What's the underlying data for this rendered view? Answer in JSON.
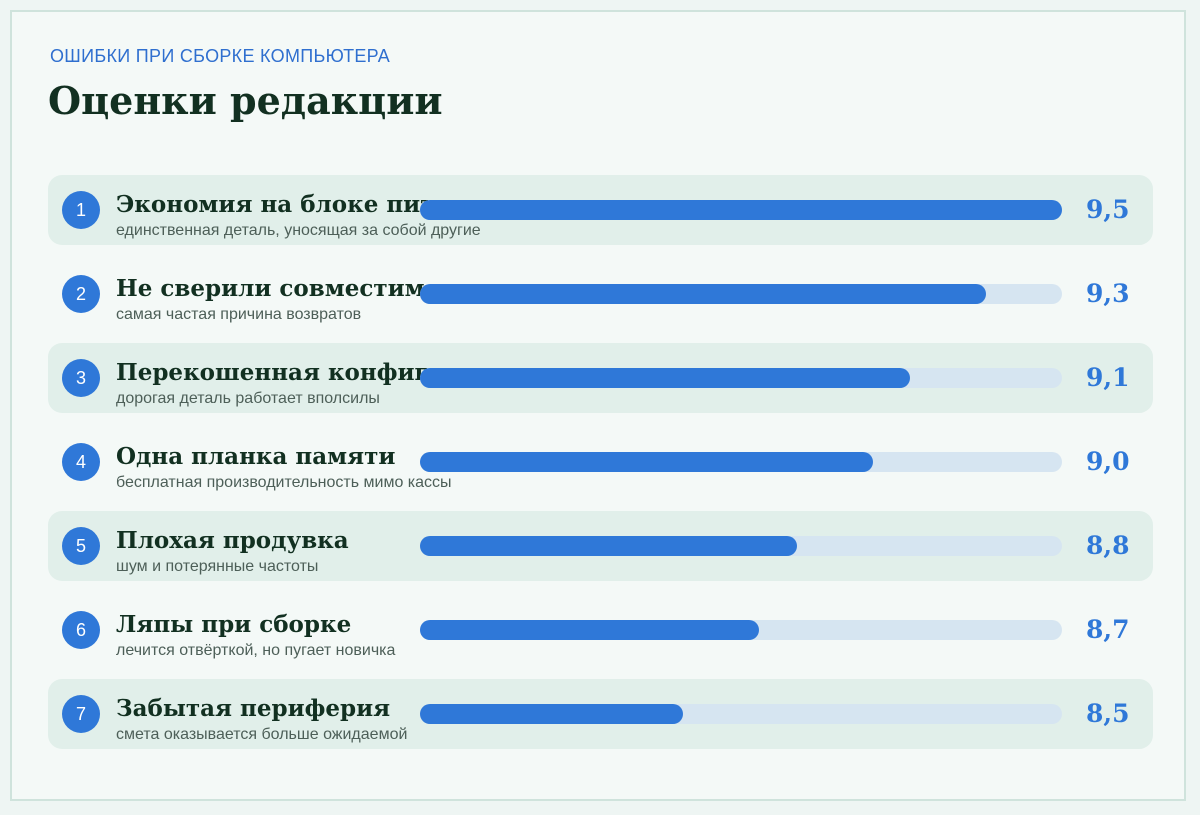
{
  "header": {
    "kicker": "ОШИБКИ ПРИ СБОРКЕ КОМПЬЮТЕРА",
    "title": "Оценки редакции"
  },
  "colors": {
    "accent": "#2f78d8",
    "track": "#d6e5f1",
    "row_shade": "#e1efea",
    "text_dark": "#123021"
  },
  "chart_data": {
    "type": "bar",
    "orientation": "horizontal",
    "title": "Оценки редакции",
    "xlim": [
      8,
      9.5
    ],
    "categories": [
      "Экономия на блоке питания",
      "Не сверили совместимость",
      "Перекошенная конфигурация",
      "Одна планка памяти",
      "Плохая продувка",
      "Ляпы при сборке",
      "Забытая периферия"
    ],
    "values": [
      9.5,
      9.3,
      9.1,
      9.0,
      8.8,
      8.7,
      8.5
    ],
    "items": [
      {
        "rank": "1",
        "label": "Экономия на блоке питания",
        "desc": "единственная деталь, уносящая за собой другие",
        "value": 9.5,
        "score": "9,5"
      },
      {
        "rank": "2",
        "label": "Не сверили совместимость",
        "desc": "самая частая причина возвратов",
        "value": 9.3,
        "score": "9,3"
      },
      {
        "rank": "3",
        "label": "Перекошенная конфигурация",
        "desc": "дорогая деталь работает вполсилы",
        "value": 9.1,
        "score": "9,1"
      },
      {
        "rank": "4",
        "label": "Одна планка памяти",
        "desc": "бесплатная производительность мимо кассы",
        "value": 9.0,
        "score": "9,0"
      },
      {
        "rank": "5",
        "label": "Плохая продувка",
        "desc": "шум и потерянные частоты",
        "value": 8.8,
        "score": "8,8"
      },
      {
        "rank": "6",
        "label": "Ляпы при сборке",
        "desc": "лечится отвёрткой, но пугает новичка",
        "value": 8.7,
        "score": "8,7"
      },
      {
        "rank": "7",
        "label": "Забытая периферия",
        "desc": "смета оказывается больше ожидаемой",
        "value": 8.5,
        "score": "8,5"
      }
    ]
  }
}
